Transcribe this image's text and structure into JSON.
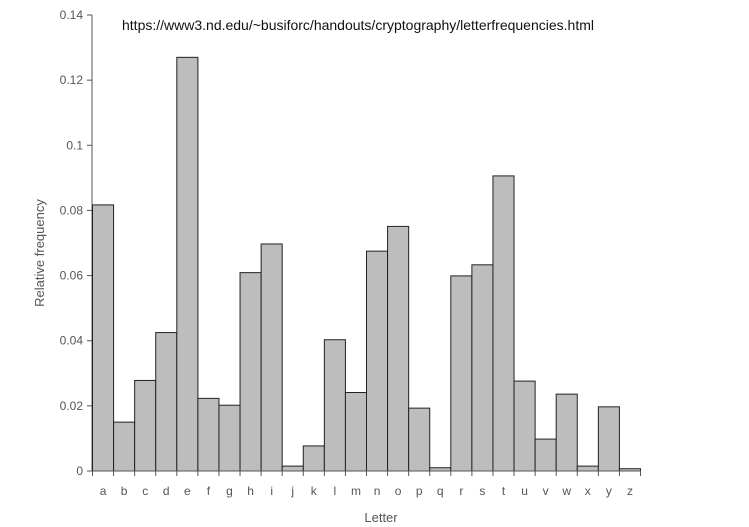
{
  "source_url": "https://www3.nd.edu/~busiforc/handouts/cryptography/letterfrequencies.html",
  "chart_data": {
    "type": "bar",
    "title": "",
    "xlabel": "Letter",
    "ylabel": "Relative frequency",
    "ylim": [
      0,
      0.14
    ],
    "yticks": [
      "0",
      "0.02",
      "0.04",
      "0.06",
      "0.08",
      "0.1",
      "0.12",
      "0.14"
    ],
    "grid": false,
    "legend": "none",
    "bar_color": "#bdbdbd",
    "bar_edge_color": "#222222",
    "categories": [
      "a",
      "b",
      "c",
      "d",
      "e",
      "f",
      "g",
      "h",
      "i",
      "j",
      "k",
      "l",
      "m",
      "n",
      "o",
      "p",
      "q",
      "r",
      "s",
      "t",
      "u",
      "v",
      "w",
      "x",
      "y",
      "z"
    ],
    "values": [
      0.0817,
      0.015,
      0.0278,
      0.0425,
      0.127,
      0.0223,
      0.0202,
      0.0609,
      0.0697,
      0.0015,
      0.0077,
      0.0403,
      0.0241,
      0.0675,
      0.0751,
      0.0193,
      0.001,
      0.0599,
      0.0633,
      0.0906,
      0.0276,
      0.0098,
      0.0236,
      0.0015,
      0.0197,
      0.0007
    ]
  }
}
